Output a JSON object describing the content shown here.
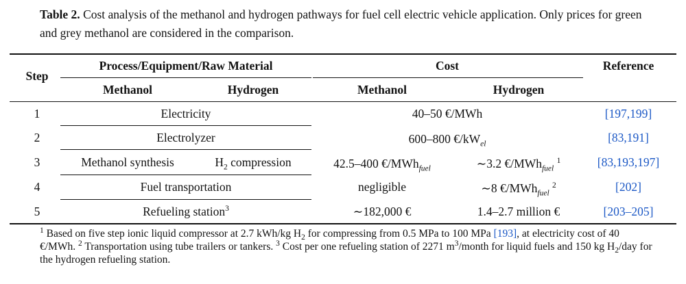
{
  "caption": {
    "label": "Table 2.",
    "text": "Cost analysis of the methanol and hydrogen pathways for fuel cell electric vehicle application. Only prices for green and grey methanol are considered in the comparison."
  },
  "header": {
    "step": "Step",
    "process": "Process/Equipment/Raw Material",
    "cost": "Cost",
    "reference": "Reference",
    "methanol": "Methanol",
    "hydrogen": "Hydrogen"
  },
  "rows": [
    {
      "step": "1",
      "process": "Electricity",
      "cost": "40–50 €/MWh",
      "ref": "[197,199]"
    },
    {
      "step": "2",
      "process": "Electrolyzer",
      "cost_main": "600–800 €/kW",
      "cost_sub": "el",
      "ref": "[83,191]"
    },
    {
      "step": "3",
      "proc_methanol": "Methanol synthesis",
      "proc_h_pre": "H",
      "proc_h_sub": "2",
      "proc_h_post": " compression",
      "cost_methanol": "42.5–400 €/MWh",
      "cost_methanol_sub": "fuel",
      "cost_hydrogen": "∼3.2 €/MWh",
      "cost_hydrogen_sub": "fuel",
      "cost_hydrogen_sup": "1",
      "ref": "[83,193,197]"
    },
    {
      "step": "4",
      "process": "Fuel transportation",
      "cost_methanol": "negligible",
      "cost_hydrogen": "∼8 €/MWh",
      "cost_hydrogen_sub": "fuel",
      "cost_hydrogen_sup": "2",
      "ref": "[202]"
    },
    {
      "step": "5",
      "process": "Refueling station",
      "process_sup": "3",
      "cost_methanol": "∼182,000 €",
      "cost_hydrogen": "1.4–2.7 million €",
      "ref": "[203–205]"
    }
  ],
  "footnotes": {
    "n1_mark": "1",
    "n1_text": " Based on five step ionic liquid compressor at 2.7 kWh/kg H",
    "n1_sub": "2",
    "n1_text2": " for compressing from 0.5 MPa to 100 MPa ",
    "n1_ref": "[193]",
    "n1_text3": ", at electricity cost of 40 €/MWh. ",
    "n2_mark": "2",
    "n2_text": " Transportation using tube trailers or tankers. ",
    "n3_mark": "3",
    "n3_text": " Cost per one refueling station of 2271 m",
    "n3_sup": "3",
    "n3_text2": "/month for liquid fuels and 150 kg H",
    "n3_sub": "2",
    "n3_text3": "/day for the hydrogen refueling station."
  }
}
